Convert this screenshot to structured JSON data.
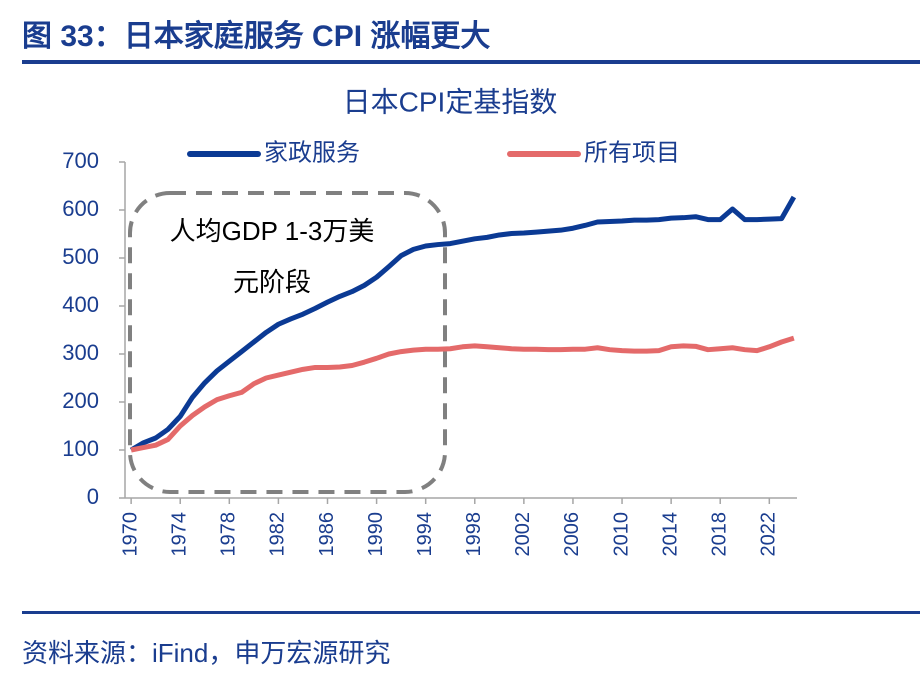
{
  "header": {
    "title": "图 33：日本家庭服务 CPI 涨幅更大"
  },
  "chart_data": {
    "type": "line",
    "title": "日本CPI定基指数",
    "x": [
      1970,
      1971,
      1972,
      1973,
      1974,
      1975,
      1976,
      1977,
      1978,
      1979,
      1980,
      1981,
      1982,
      1983,
      1984,
      1985,
      1986,
      1987,
      1988,
      1989,
      1990,
      1991,
      1992,
      1993,
      1994,
      1995,
      1996,
      1997,
      1998,
      1999,
      2000,
      2001,
      2002,
      2003,
      2004,
      2005,
      2006,
      2007,
      2008,
      2009,
      2010,
      2011,
      2012,
      2013,
      2014,
      2015,
      2016,
      2017,
      2018,
      2019,
      2020,
      2021,
      2022,
      2023,
      2024
    ],
    "series": [
      {
        "name": "家政服务",
        "color": "#0b3a94",
        "values": [
          100,
          115,
          125,
          143,
          170,
          210,
          240,
          265,
          285,
          305,
          325,
          345,
          362,
          373,
          383,
          395,
          408,
          420,
          430,
          443,
          460,
          482,
          505,
          518,
          525,
          528,
          530,
          535,
          540,
          543,
          548,
          551,
          552,
          554,
          556,
          558,
          562,
          568,
          575,
          576,
          577,
          579,
          579,
          580,
          583,
          584,
          586,
          580,
          580,
          602,
          580,
          580,
          581,
          582,
          627
        ]
      },
      {
        "name": "所有项目",
        "color": "#e46a6a",
        "values": [
          100,
          105,
          110,
          122,
          150,
          172,
          190,
          205,
          213,
          220,
          238,
          250,
          256,
          262,
          268,
          272,
          272,
          273,
          276,
          283,
          291,
          300,
          305,
          308,
          310,
          310,
          311,
          315,
          317,
          315,
          313,
          311,
          310,
          310,
          309,
          309,
          310,
          310,
          313,
          309,
          307,
          306,
          306,
          307,
          315,
          317,
          316,
          309,
          311,
          313,
          309,
          307,
          315,
          325,
          333
        ]
      }
    ],
    "xlim": [
      1969.5,
      2024.5
    ],
    "xticks": [
      1970,
      1974,
      1978,
      1982,
      1986,
      1990,
      1994,
      1998,
      2002,
      2006,
      2010,
      2014,
      2018,
      2022
    ],
    "ylim": [
      0,
      700
    ],
    "yticks": [
      0,
      100,
      200,
      300,
      400,
      500,
      600,
      700
    ],
    "grid": false,
    "annotation": [
      "人均GDP 1-3万美",
      "元阶段"
    ]
  },
  "footer": {
    "source": "资料来源：iFind，申万宏源研究"
  }
}
